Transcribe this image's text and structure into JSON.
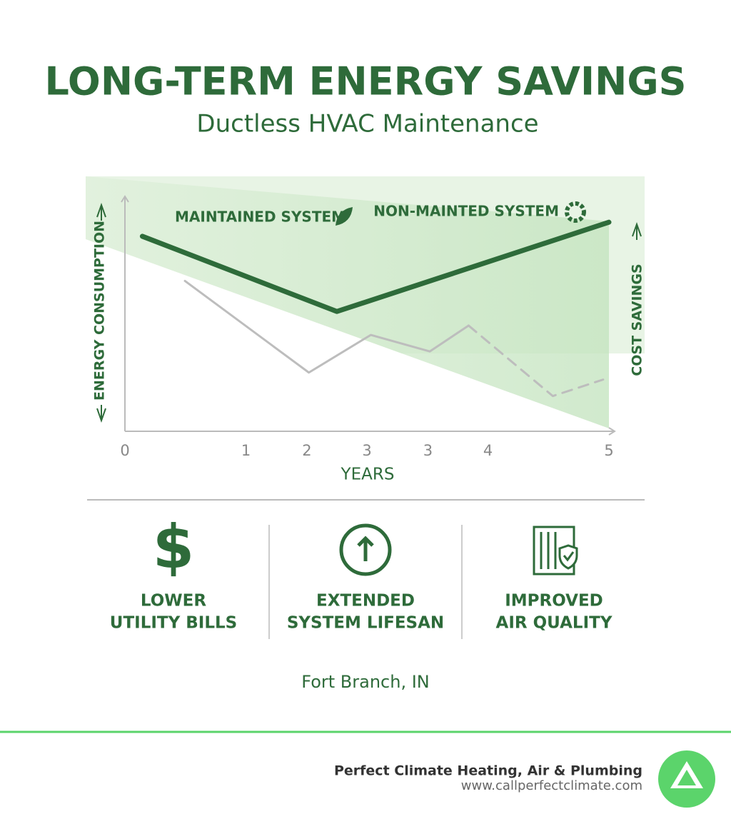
{
  "header": {
    "title": "LONG-TERM ENERGY SAVINGS",
    "subtitle": "Ductless HVAC Maintenance"
  },
  "chart_data": {
    "type": "line",
    "y_label": "ENERGY CONSUMPTION",
    "y2_label": "COST SAVINGS",
    "x_label": "YEARS",
    "xlim": [
      0,
      5
    ],
    "ylim": [
      0,
      100
    ],
    "xticks": [
      0,
      {
        "value": 1.25,
        "label": "1"
      },
      {
        "value": 1.88,
        "label": "2"
      },
      {
        "value": 2.5,
        "label": "3"
      },
      {
        "value": 3.13,
        "label": "3"
      },
      {
        "value": 3.75,
        "label": "4"
      },
      5
    ],
    "series": [
      {
        "name": "MAINTAINED SYSTEM",
        "color": "#2e6b3a",
        "x": [
          0.18,
          2.19,
          5
        ],
        "values": [
          83,
          51,
          89
        ]
      },
      {
        "name": "NON-MAINTED SYSTEM",
        "color": "#bdbdbd",
        "x": [
          0.62,
          1.9,
          2.54,
          3.15,
          3.55
        ],
        "values": [
          64,
          25,
          41,
          34,
          45
        ]
      },
      {
        "color": "#bdbdbd",
        "dashed": true,
        "x": [
          3.55,
          4.42,
          4.94
        ],
        "values": [
          45,
          15,
          22
        ]
      }
    ]
  },
  "features": [
    {
      "lines": [
        "LOWER",
        "UTILITY BILLS"
      ]
    },
    {
      "lines": [
        "EXTENDED",
        "SYSTEM LIFESAN"
      ]
    },
    {
      "lines": [
        "IMPROVED",
        "AIR QUALITY"
      ]
    }
  ],
  "location": "Fort Branch, IN",
  "footer": {
    "company": "Perfect Climate Heating, Air & Plumbing",
    "url": "www.callperfectclimate.com"
  }
}
